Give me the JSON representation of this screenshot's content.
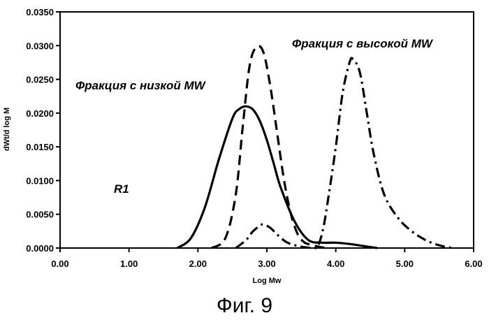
{
  "chart_data": {
    "type": "line",
    "title": "",
    "xlabel": "Log Mw",
    "ylabel": "dWt/d log M",
    "xlim": [
      0.0,
      6.0
    ],
    "ylim": [
      0.0,
      0.035
    ],
    "x_ticks": [
      "0.00",
      "1.00",
      "2.00",
      "3.00",
      "4.00",
      "5.00",
      "6.00"
    ],
    "y_ticks": [
      "0.0000",
      "0.0050",
      "0.0100",
      "0.0150",
      "0.0200",
      "0.0250",
      "0.0300",
      "0.0350"
    ],
    "grid": false,
    "legend": "none",
    "series": [
      {
        "style": "solid",
        "x": [
          1.7,
          1.9,
          2.1,
          2.3,
          2.5,
          2.6,
          2.7,
          2.8,
          2.9,
          3.0,
          3.1,
          3.2,
          3.4,
          3.6,
          3.8,
          4.0,
          4.2,
          4.4,
          4.6
        ],
        "y": [
          0.0,
          0.0015,
          0.006,
          0.013,
          0.0192,
          0.0206,
          0.021,
          0.0205,
          0.0188,
          0.016,
          0.0125,
          0.009,
          0.004,
          0.0012,
          0.0008,
          0.0008,
          0.0006,
          0.0003,
          0.0
        ]
      },
      {
        "style": "dashed",
        "x": [
          2.2,
          2.4,
          2.55,
          2.65,
          2.75,
          2.85,
          2.95,
          3.05,
          3.15,
          3.25,
          3.35,
          3.45,
          3.55,
          3.65,
          3.75,
          3.85
        ],
        "y": [
          0.0,
          0.0015,
          0.008,
          0.018,
          0.027,
          0.0298,
          0.029,
          0.024,
          0.017,
          0.01,
          0.005,
          0.002,
          0.0008,
          0.0005,
          0.0002,
          0.0
        ]
      },
      {
        "style": "dash-dot",
        "x": [
          2.55,
          2.7,
          2.8,
          2.9,
          2.95,
          3.05,
          3.15,
          3.3,
          3.5,
          3.7,
          3.75,
          3.82,
          3.9,
          4.0,
          4.1,
          4.2,
          4.25,
          4.35,
          4.45,
          4.55,
          4.7,
          4.9,
          5.1,
          5.3,
          5.5,
          5.7
        ],
        "y": [
          0.0,
          0.0012,
          0.0025,
          0.0033,
          0.0035,
          0.003,
          0.002,
          0.0008,
          0.0002,
          0.0,
          0.0005,
          0.003,
          0.008,
          0.015,
          0.023,
          0.0275,
          0.028,
          0.026,
          0.02,
          0.014,
          0.008,
          0.0045,
          0.0025,
          0.0012,
          0.0004,
          0.0
        ]
      }
    ],
    "annotations": [
      {
        "text": "Фракция с низкой MW"
      },
      {
        "text": "Фракция с высокой MW"
      },
      {
        "text": "R1"
      }
    ]
  },
  "figure_caption": "Фиг. 9"
}
